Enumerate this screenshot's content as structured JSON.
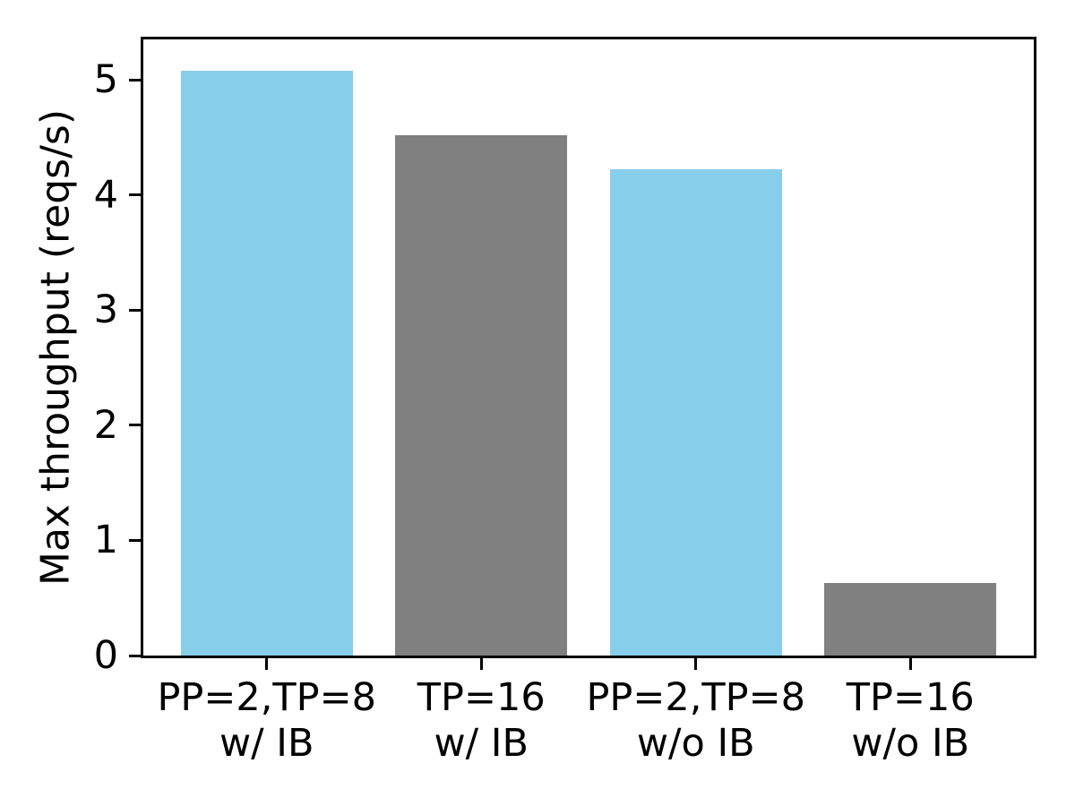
{
  "figure": {
    "background": "#ffffff",
    "axis_color": "#000000",
    "text_color": "#000000"
  },
  "chart_data": {
    "type": "bar",
    "title": "",
    "xlabel": "",
    "ylabel": "Max throughput (reqs/s)",
    "categories": [
      [
        "PP=2,TP=8",
        "w/ IB"
      ],
      [
        "TP=16",
        "w/ IB"
      ],
      [
        "PP=2,TP=8",
        "w/o IB"
      ],
      [
        "TP=16",
        "w/o IB"
      ]
    ],
    "values": [
      5.08,
      4.52,
      4.22,
      0.63
    ],
    "bar_colors": [
      "#87CEEB",
      "#808080",
      "#87CEEB",
      "#808080"
    ],
    "color_legend": {
      "skyblue": "#87CEEB",
      "gray": "#808080"
    },
    "yticks": [
      0,
      1,
      2,
      3,
      4,
      5
    ],
    "ylim": [
      0,
      5.35
    ],
    "grid": false,
    "legend_position": "none",
    "bar_width_fraction": 0.8
  }
}
